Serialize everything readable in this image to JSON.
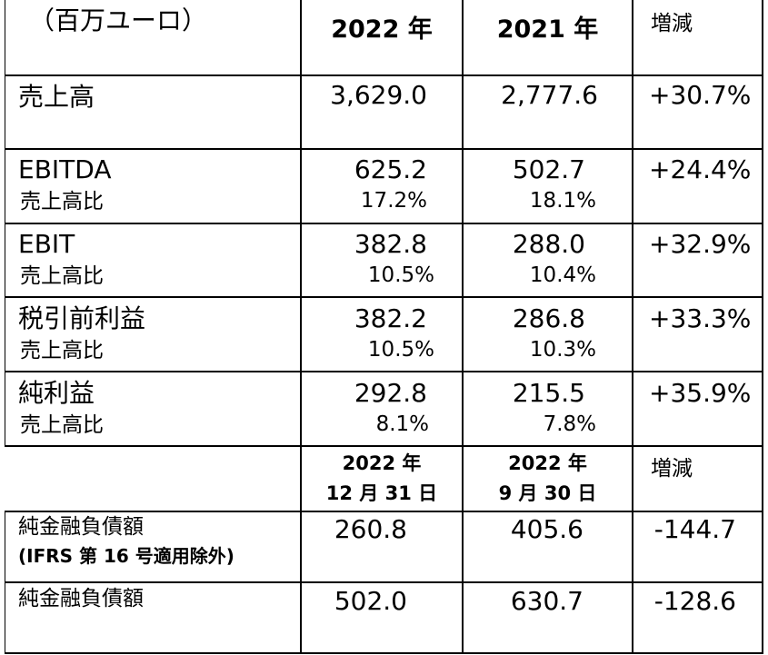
{
  "header": {
    "unit": "（百万ユーロ）",
    "col_2022": "2022 年",
    "col_2021": "2021 年",
    "col_change": "増減"
  },
  "rows": [
    {
      "label": "売上高",
      "v2022": "3,629.0",
      "v2021": "2,777.6",
      "change": "+30.7%"
    },
    {
      "label": "EBITDA",
      "sub": "売上高比",
      "v2022": "625.2",
      "p2022": "17.2%",
      "v2021": "502.7",
      "p2021": "18.1%",
      "change": "+24.4%"
    },
    {
      "label": "EBIT",
      "sub": "売上高比",
      "v2022": "382.8",
      "p2022": "10.5%",
      "v2021": "288.0",
      "p2021": "10.4%",
      "change": "+32.9%"
    },
    {
      "label": "税引前利益",
      "sub": "売上高比",
      "v2022": "382.2",
      "p2022": "10.5%",
      "v2021": "286.8",
      "p2021": "10.3%",
      "change": "+33.3%"
    },
    {
      "label": "純利益",
      "sub": "売上高比",
      "v2022": "292.8",
      "p2022": "8.1%",
      "v2021": "215.5",
      "p2021": "7.8%",
      "change": "+35.9%"
    }
  ],
  "header2": {
    "date1_line1": "2022 年",
    "date1_line2": "12 月 31 日",
    "date2_line1": "2022 年",
    "date2_line2": "9 月 30 日",
    "change": "増減"
  },
  "debt_rows": [
    {
      "label": "純金融負債額",
      "label2": "(IFRS 第 16 号適用除外)",
      "v1": "260.8",
      "v2": "405.6",
      "change": "-144.7"
    },
    {
      "label": "純金融負債額",
      "v1": "502.0",
      "v2": "630.7",
      "change": "-128.6"
    }
  ]
}
